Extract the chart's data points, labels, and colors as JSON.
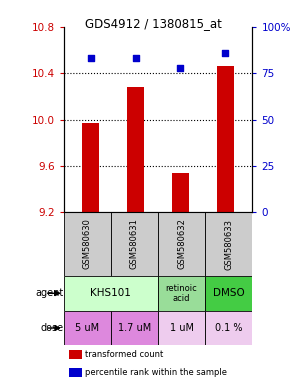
{
  "title": "GDS4912 / 1380815_at",
  "samples": [
    "GSM580630",
    "GSM580631",
    "GSM580632",
    "GSM580633"
  ],
  "bar_values": [
    9.97,
    10.28,
    9.54,
    10.46
  ],
  "dot_values": [
    83,
    83,
    78,
    86
  ],
  "ylim_left": [
    9.2,
    10.8
  ],
  "ylim_right": [
    0,
    100
  ],
  "yticks_left": [
    9.2,
    9.6,
    10.0,
    10.4,
    10.8
  ],
  "yticks_right": [
    0,
    25,
    50,
    75,
    100
  ],
  "ytick_labels_right": [
    "0",
    "25",
    "50",
    "75",
    "100%"
  ],
  "bar_color": "#cc0000",
  "dot_color": "#0000cc",
  "bar_bottom": 9.2,
  "agent_light_green": "#ccffcc",
  "agent_mid_green": "#99dd99",
  "agent_bright_green": "#44cc44",
  "doses": [
    "5 uM",
    "1.7 uM",
    "1 uM",
    "0.1 %"
  ],
  "dose_color_bright": "#dd88dd",
  "dose_color_light": "#eeccee",
  "sample_bg_color": "#cccccc",
  "legend_bar_label": "transformed count",
  "legend_dot_label": "percentile rank within the sample",
  "x_positions": [
    0,
    1,
    2,
    3
  ],
  "grid_yticks": [
    9.6,
    10.0,
    10.4
  ]
}
